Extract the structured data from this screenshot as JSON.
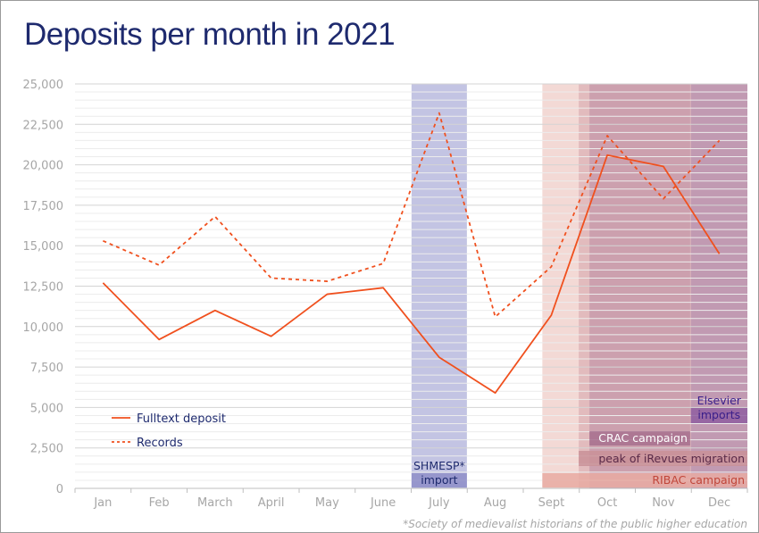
{
  "title": "Deposits per month in 2021",
  "chart_data": {
    "type": "line",
    "categories": [
      "Jan",
      "Feb",
      "March",
      "April",
      "May",
      "June",
      "July",
      "Aug",
      "Sept",
      "Oct",
      "Nov",
      "Dec"
    ],
    "yticks": [
      "0",
      "2,500",
      "5,000",
      "7,500",
      "10,000",
      "12,500",
      "15,000",
      "17,500",
      "20,000",
      "22,500",
      "25,000"
    ],
    "ylim": [
      0,
      25000
    ],
    "grid": true,
    "series": [
      {
        "name": "Fulltext deposit",
        "style": "solid",
        "color": "#f0501e",
        "values": [
          12700,
          9200,
          11000,
          9400,
          12000,
          12400,
          8100,
          5900,
          10700,
          20600,
          19900,
          14500
        ]
      },
      {
        "name": "Records",
        "style": "dashed",
        "color": "#f0501e",
        "values": [
          15300,
          13800,
          16800,
          13000,
          12800,
          13900,
          23200,
          10600,
          13700,
          21800,
          17900,
          21500
        ]
      }
    ],
    "legend_position": "bottom-left",
    "annotations": [
      {
        "label": "SHMESP* import",
        "line1": "SHMESP*",
        "line2": "import",
        "start": "July",
        "end": "July",
        "color": "#b9bade",
        "label_bg": "#8e8ec8",
        "text_color": "#1e2a6e"
      },
      {
        "label": "RIBAC campaign",
        "start": "Sept",
        "end": "Dec",
        "color": "#e9b9b3",
        "label_bg": "#e7aaa2",
        "text_color": "#c0463a"
      },
      {
        "label": "peak of iRevues migration",
        "start": "Oct",
        "end": "Dec",
        "color": "#d4a3aa",
        "label_bg": "#c99098",
        "text_color": "#5a2a48"
      },
      {
        "label": "CRAC campaign",
        "start": "Oct",
        "end": "Nov",
        "color": "#b98aa3",
        "label_bg": "#a7708e",
        "text_color": "#ffffff"
      },
      {
        "label": "Elsevier imports",
        "line1": "Elsevier",
        "line2": "imports",
        "start": "Dec",
        "end": "Dec",
        "color": "#a680a9",
        "label_bg": "#8f5ea0",
        "text_color": "#3a1e8a"
      }
    ],
    "footnote": "*Society of medievalist historians of the public higher education"
  }
}
